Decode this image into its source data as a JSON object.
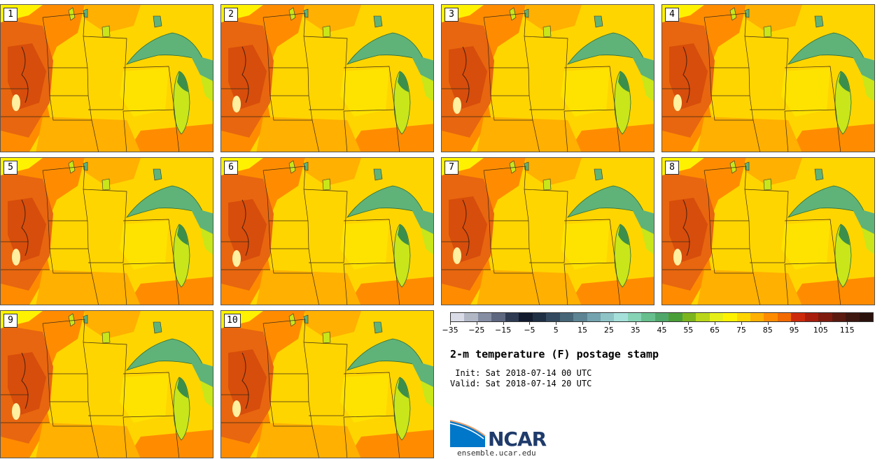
{
  "panels": [
    {
      "label": "1"
    },
    {
      "label": "2"
    },
    {
      "label": "3"
    },
    {
      "label": "4"
    },
    {
      "label": "5"
    },
    {
      "label": "6"
    },
    {
      "label": "7"
    },
    {
      "label": "8"
    },
    {
      "label": "9"
    },
    {
      "label": "10"
    }
  ],
  "colorbar": {
    "min": -35,
    "max": 120,
    "step": 5,
    "colors": [
      "#d9dbe6",
      "#b2b7c6",
      "#858da3",
      "#5e6780",
      "#2e3a52",
      "#121b2e",
      "#1f2f44",
      "#33495f",
      "#466577",
      "#5d8493",
      "#73a3ae",
      "#8ec4c6",
      "#a6e0da",
      "#86d3b5",
      "#66bf8c",
      "#4fa86a",
      "#4a9e38",
      "#7cb41e",
      "#b9d61a",
      "#e6ee17",
      "#fff200",
      "#ffd500",
      "#ffb000",
      "#ff8c00",
      "#f26a00",
      "#cc2a0a",
      "#a81d0c",
      "#7e1b0e",
      "#5a1a10",
      "#3e1710",
      "#2a120c"
    ],
    "tick_labels": [
      "-35",
      "-25",
      "-15",
      "-5",
      "5",
      "15",
      "25",
      "35",
      "45",
      "55",
      "65",
      "75",
      "85",
      "95",
      "105",
      "115"
    ]
  },
  "title": "2-m temperature (F) postage stamp",
  "init_line": " Init: Sat 2018-07-14 00 UTC",
  "valid_line": "Valid: Sat 2018-07-14 20 UTC",
  "logo": {
    "name": "NCAR",
    "url": "ensemble.ucar.edu"
  },
  "map_colors": {
    "hot": "#e8660f",
    "warm": "#ff8c00",
    "mid": "#ffb000",
    "mild": "#ffd500",
    "cool": "#fff200",
    "lake": "#5fb378",
    "lake_dark": "#3c8f4a",
    "lake_light": "#c8e61a",
    "hotspot": "#c9380a"
  }
}
